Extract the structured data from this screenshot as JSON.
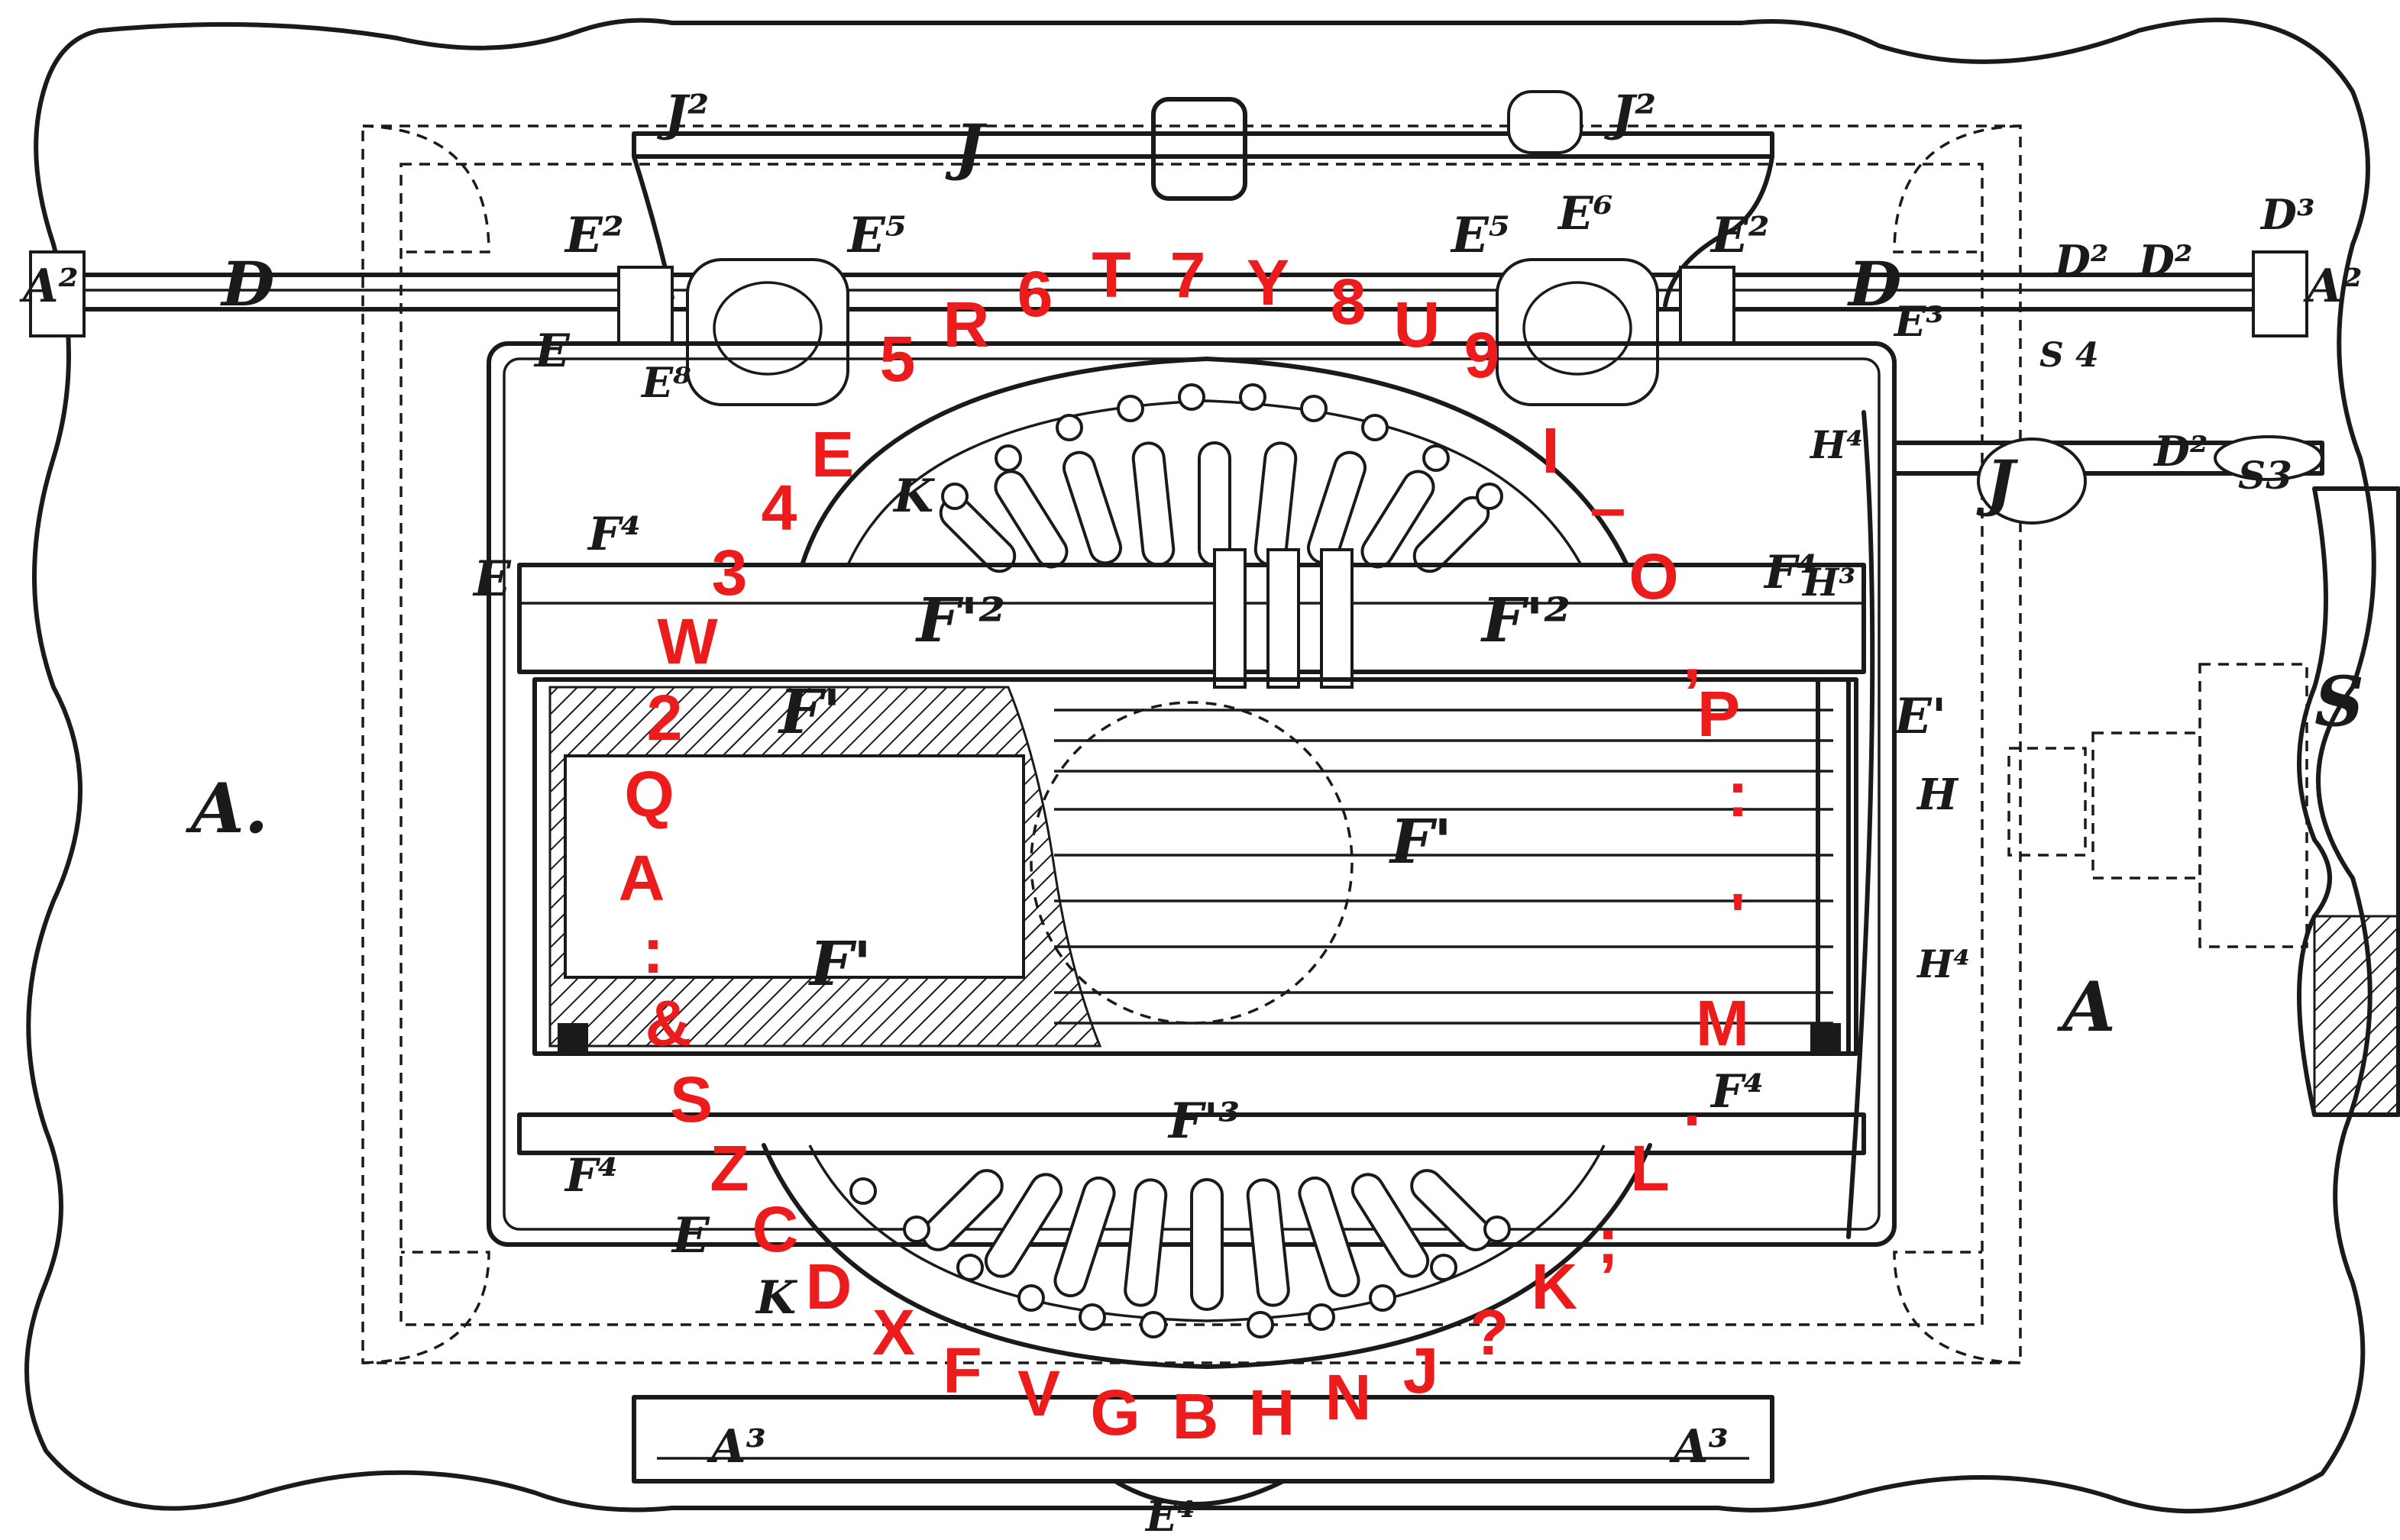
{
  "figure": {
    "patent_labels": {
      "A_left": "A.",
      "A_right": "A",
      "A2_left": "A²",
      "A2_right": "A²",
      "A3_left": "A³",
      "A3_right": "A³",
      "D_left": "D",
      "D_right": "D",
      "D2_a": "D²",
      "D2_b": "D²",
      "D2_c": "D²",
      "D3": "D³",
      "J": "J",
      "J2_left": "J²",
      "J2_right": "J²",
      "E2_left": "E²",
      "E2_right": "E²",
      "E5_left": "E⁵",
      "E5_right": "E⁵",
      "E6": "E⁶",
      "E8": "E⁸",
      "E3": "E³",
      "E4": "E⁴",
      "E1": "E'",
      "E_a": "E",
      "E_b": "E",
      "E_c": "E",
      "F_a": "F'",
      "F_b": "F'",
      "F_c": "F'",
      "F2_a": "F'²",
      "F2_b": "F'²",
      "F3": "F'³",
      "F4_a": "F⁴",
      "F4_b": "F⁴",
      "F4_c": "F⁴",
      "F4_d": "F⁴",
      "H": "H",
      "H3": "H³",
      "H4_a": "H⁴",
      "H4_b": "H⁴",
      "K_a": "K",
      "K_b": "K",
      "S": "S",
      "S3": "S3",
      "S4": "S 4",
      "J4": "J"
    },
    "key_labels": {
      "k_R": "R",
      "k_6": "6",
      "k_T": "T",
      "k_7": "7",
      "k_Y": "Y",
      "k_8": "8",
      "k_U": "U",
      "k_9": "9",
      "k_I": "I",
      "k_dash": "–",
      "k_O": "O",
      "k_5": "5",
      "k_E": "E",
      "k_4": "4",
      "k_3": "3",
      "k_W": "W",
      "k_2": "2",
      "k_Q": "Q",
      "k_A": "A",
      "k_colon_left": ":",
      "k_amp": "&",
      "k_S": "S",
      "k_Z": "Z",
      "k_C": "C",
      "k_D": "D",
      "k_X": "X",
      "k_F": "F",
      "k_V": "V",
      "k_G": "G",
      "k_B": "B",
      "k_H": "H",
      "k_N": "N",
      "k_J": "J",
      "k_q": "?",
      "k_K": "K",
      "k_semi": ";",
      "k_L": "L",
      "k_period": ".",
      "k_M": "M",
      "k_apos": "'",
      "k_colon_right": ":",
      "k_P": "P",
      "k_comma": ","
    },
    "colors": {
      "ink": "#1a1a1a",
      "key_labels": "#ec1c1c",
      "paper": "#ffffff"
    }
  }
}
